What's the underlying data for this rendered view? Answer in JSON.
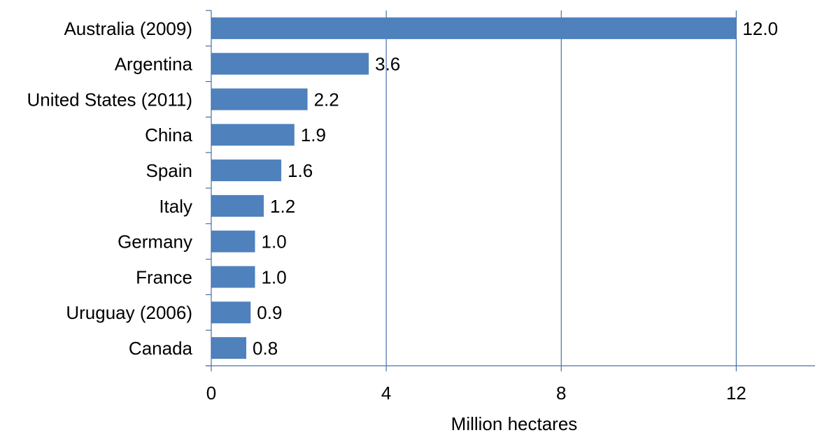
{
  "chart_data": {
    "type": "bar",
    "orientation": "horizontal",
    "title": "",
    "xlabel": "Million hectares",
    "ylabel": "",
    "categories": [
      "Australia (2009)",
      "Argentina",
      "United States (2011)",
      "China",
      "Spain",
      "Italy",
      "Germany",
      "France",
      "Uruguay (2006)",
      "Canada"
    ],
    "values": [
      12.0,
      3.6,
      2.2,
      1.9,
      1.6,
      1.2,
      1.0,
      1.0,
      0.9,
      0.8
    ],
    "value_labels": [
      "12.0",
      "3.6",
      "2.2",
      "1.9",
      "1.6",
      "1.2",
      "1.0",
      "1.0",
      "0.9",
      "0.8"
    ],
    "xlim": [
      0,
      13.8
    ],
    "xticks": [
      0,
      4,
      8,
      12
    ],
    "xtick_labels": [
      "0",
      "4",
      "8",
      "12"
    ],
    "grid": "vertical major gridlines",
    "legend": "none",
    "colors": {
      "bar": "#4f81bd",
      "gridline": "#4a6fa5",
      "axis": "#4a6fa5",
      "text": "#000000"
    }
  }
}
